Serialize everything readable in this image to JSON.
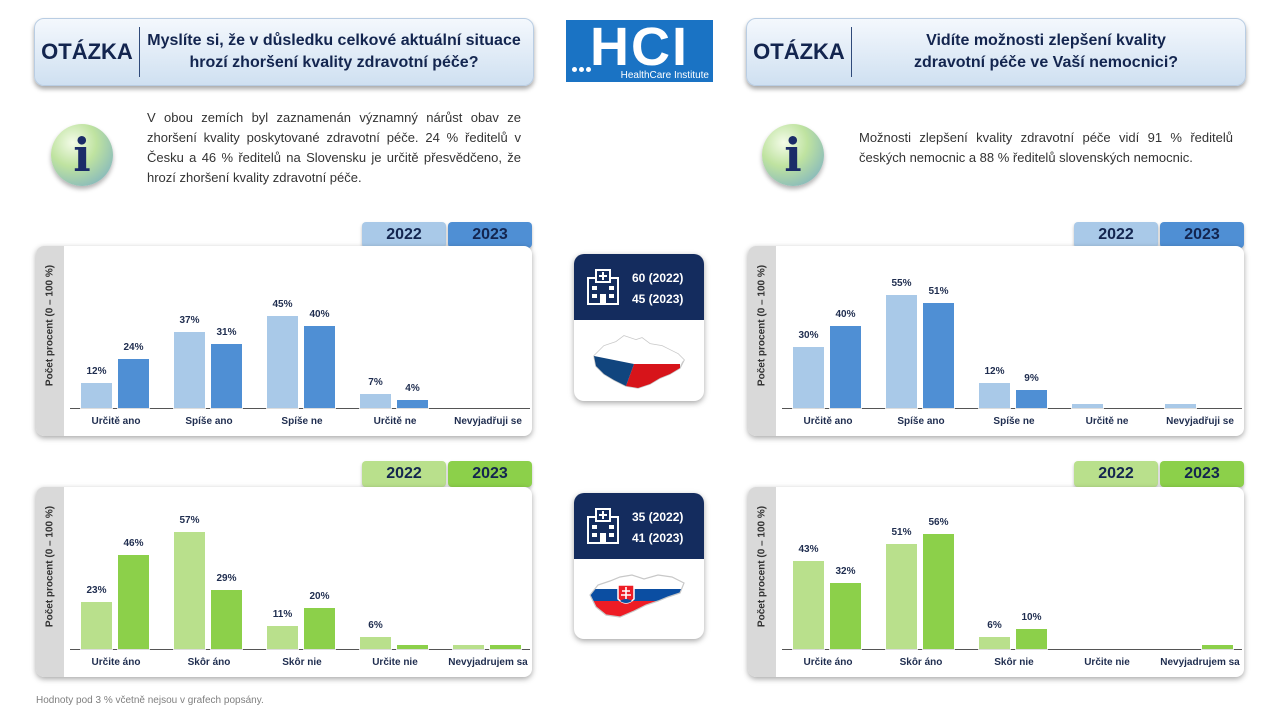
{
  "header": {
    "left_question": {
      "label": "OTÁZKA",
      "line1": "Myslíte si, že v důsledku celkové aktuální situace",
      "line2": "hrozí zhoršení kvality zdravotní péče?"
    },
    "right_question": {
      "label": "OTÁZKA",
      "line1": "Vidíte možnosti zlepšení kvality",
      "line2": "zdravotní péče ve Vaší nemocnici?"
    },
    "logo": {
      "title": "HCI",
      "subtitle": "HealthCare Institute"
    }
  },
  "info": {
    "icon_letter": "i",
    "left_text": "V obou zemích byl zaznamenán významný nárůst obav ze zhoršení kvality poskytované zdravotní péče. 24 % ředitelů v Česku a 46 % ředitelů na Slovensku je určitě přesvědčeno, že hrozí zhoršení kvality zdravotní péče.",
    "right_text": "Možnosti zlepšení kvality zdravotní péče vidí 91 % ředitelů českých nemocnic a 88 % ředitelů slovenských nemocnic."
  },
  "countries": {
    "cz": {
      "line1": "60 (2022)",
      "line2": "45 (2023)"
    },
    "sk": {
      "line1": "35 (2022)",
      "line2": "41 (2023)"
    }
  },
  "legend": {
    "y2022": "2022",
    "y2023": "2023"
  },
  "ylabel": "Počet procent  (0 – 100 %)",
  "footnote": "Hodnoty pod 3 % včetně nejsou v grafech popsány.",
  "colors": {
    "blue_2022": "#a9c9e8",
    "blue_2023": "#4f8fd4",
    "green_2022": "#b9e08c",
    "green_2023": "#8cd04a",
    "navy": "#142c5e"
  },
  "chart_data": [
    {
      "type": "bar",
      "id": "cz_threat",
      "categories": [
        "Určitě ano",
        "Spíše ano",
        "Spíše ne",
        "Určitě ne",
        "Nevyjadřuji se"
      ],
      "series": [
        {
          "name": "2022",
          "values": [
            12,
            37,
            45,
            7,
            0
          ]
        },
        {
          "name": "2023",
          "values": [
            24,
            31,
            40,
            4,
            0
          ]
        }
      ],
      "ylim": [
        0,
        60
      ],
      "ylabel": "Počet procent  (0 – 100 %)"
    },
    {
      "type": "bar",
      "id": "sk_threat",
      "categories": [
        "Určite áno",
        "Skôr áno",
        "Skôr nie",
        "Určite nie",
        "Nevyjadrujem sa"
      ],
      "series": [
        {
          "name": "2022",
          "values": [
            23,
            57,
            11,
            6,
            2
          ]
        },
        {
          "name": "2023",
          "values": [
            46,
            29,
            20,
            2,
            2
          ]
        }
      ],
      "ylim": [
        0,
        60
      ],
      "ylabel": "Počet procent  (0 – 100 %)"
    },
    {
      "type": "bar",
      "id": "cz_improve",
      "categories": [
        "Určitě ano",
        "Spíše ano",
        "Spíše ne",
        "Určitě ne",
        "Nevyjadřuji se"
      ],
      "series": [
        {
          "name": "2022",
          "values": [
            30,
            55,
            12,
            2,
            2
          ]
        },
        {
          "name": "2023",
          "values": [
            40,
            51,
            9,
            0,
            0
          ]
        }
      ],
      "ylim": [
        0,
        60
      ],
      "ylabel": "Počet procent  (0 – 100 %)"
    },
    {
      "type": "bar",
      "id": "sk_improve",
      "categories": [
        "Určite áno",
        "Skôr áno",
        "Skôr nie",
        "Určite nie",
        "Nevyjadrujem sa"
      ],
      "series": [
        {
          "name": "2022",
          "values": [
            43,
            51,
            6,
            0,
            0
          ]
        },
        {
          "name": "2023",
          "values": [
            32,
            56,
            10,
            0,
            2
          ]
        }
      ],
      "ylim": [
        0,
        60
      ],
      "ylabel": "Počet procent  (0 – 100 %)"
    }
  ]
}
